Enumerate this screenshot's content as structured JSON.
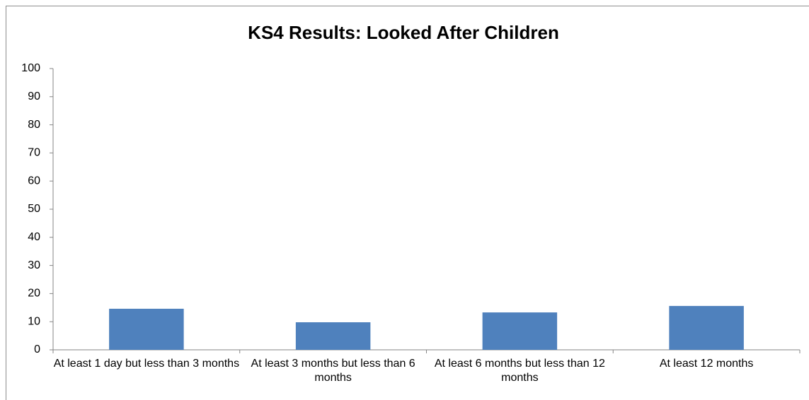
{
  "chart_data": {
    "type": "bar",
    "title": "KS4 Results: Looked After Children",
    "categories": [
      "At least 1 day but less than 3 months",
      "At least 3 months but less than 6 months",
      "At least 6 months but less than 12 months",
      "At least 12 months"
    ],
    "values": [
      14.6,
      9.8,
      13.3,
      15.6
    ],
    "color": "#4f81bd",
    "ylim": [
      0,
      100
    ],
    "yticks": [
      0,
      10,
      20,
      30,
      40,
      50,
      60,
      70,
      80,
      90,
      100
    ],
    "grid": false
  }
}
